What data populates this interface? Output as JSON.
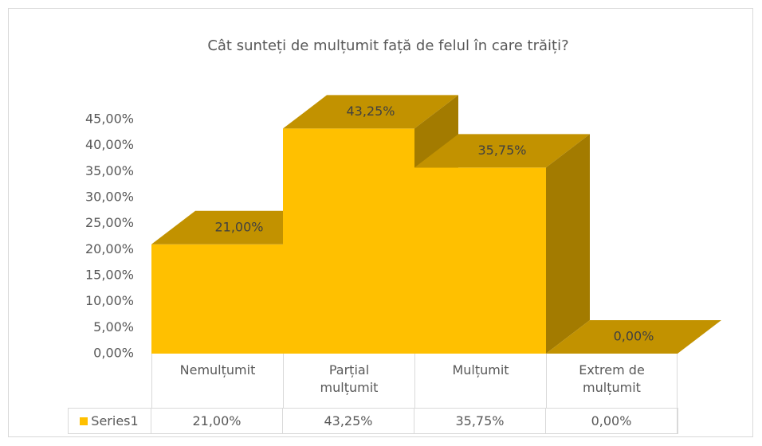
{
  "chart_data": {
    "type": "bar3d",
    "title": "Cât sunteți de mulțumit față de felul în care trăiți?",
    "categories": [
      "Nemulțumit",
      "Parțial mulțumit",
      "Mulțumit",
      "Extrem de mulțumit"
    ],
    "series": [
      {
        "name": "Series1",
        "color": "#ffc000",
        "values": [
          21,
          43.25,
          35.75,
          0
        ],
        "value_labels": [
          "21,00%",
          "43,25%",
          "35,75%",
          "0,00%"
        ]
      }
    ],
    "ylim": [
      0,
      45
    ],
    "yticks": [
      {
        "value": 0,
        "label": "0,00%"
      },
      {
        "value": 5,
        "label": "5,00%"
      },
      {
        "value": 10,
        "label": "10,00%"
      },
      {
        "value": 15,
        "label": "15,00%"
      },
      {
        "value": 20,
        "label": "20,00%"
      },
      {
        "value": 25,
        "label": "25,00%"
      },
      {
        "value": 30,
        "label": "30,00%"
      },
      {
        "value": 35,
        "label": "35,00%"
      },
      {
        "value": 40,
        "label": "40,00%"
      },
      {
        "value": 45,
        "label": "45,00%"
      }
    ],
    "data_table": true,
    "legend": "table"
  }
}
